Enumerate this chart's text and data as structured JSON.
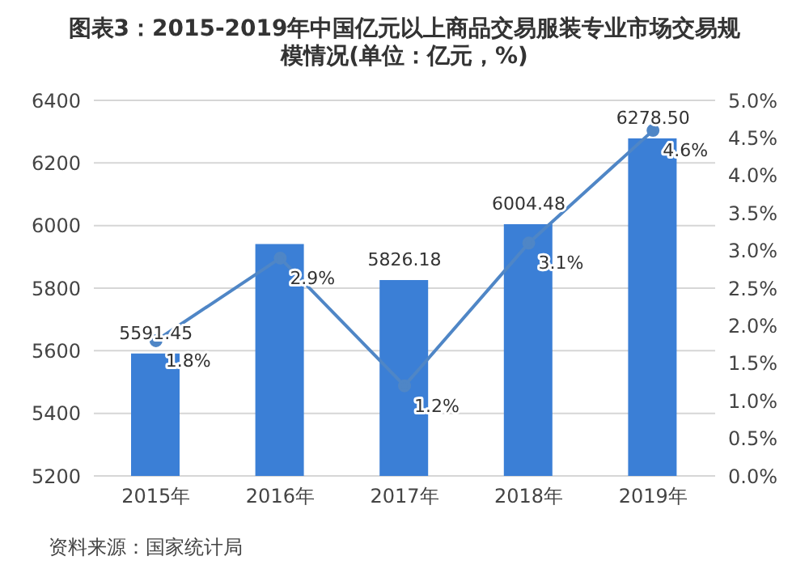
{
  "chart_data": {
    "type": "bar",
    "title": "图表3：2015-2019年中国亿元以上商品交易服装专业市场交易规模情况(单位：亿元，%)",
    "categories": [
      "2015年",
      "2016年",
      "2017年",
      "2018年",
      "2019年"
    ],
    "series": [
      {
        "color": "#3b7fd6",
        "values": [
          5591.45,
          5941,
          5826.18,
          6004.48,
          6278.5
        ],
        "value_labels": [
          "5591.45",
          null,
          "5826.18",
          "6004.48",
          "6278.50"
        ]
      },
      {
        "type": "line",
        "axis": "y2",
        "color": "#4f86c6",
        "values": [
          1.8,
          2.9,
          1.2,
          3.1,
          4.6
        ],
        "value_labels": [
          "1.8%",
          "2.9%",
          "1.2%",
          "3.1%",
          "4.6%"
        ],
        "marker": "circle"
      }
    ],
    "ylim": [
      5200,
      6400
    ],
    "yticks": [
      5200,
      5400,
      5600,
      5800,
      6000,
      6200,
      6400
    ],
    "y2lim": [
      0,
      5
    ],
    "y2ticks": [
      {
        "value": 0,
        "label": "0.0%"
      },
      {
        "value": 0.5,
        "label": "0.5%"
      },
      {
        "value": 1,
        "label": "1.0%"
      },
      {
        "value": 1.5,
        "label": "1.5%"
      },
      {
        "value": 2,
        "label": "2.0%"
      },
      {
        "value": 2.5,
        "label": "2.5%"
      },
      {
        "value": 3,
        "label": "3.0%"
      },
      {
        "value": 3.5,
        "label": "3.5%"
      },
      {
        "value": 4,
        "label": "4.0%"
      },
      {
        "value": 4.5,
        "label": "4.5%"
      },
      {
        "value": 5,
        "label": "5.0%"
      }
    ],
    "grid": "y",
    "legend": false,
    "annotations": [
      "资料来源：国家统计局"
    ]
  }
}
